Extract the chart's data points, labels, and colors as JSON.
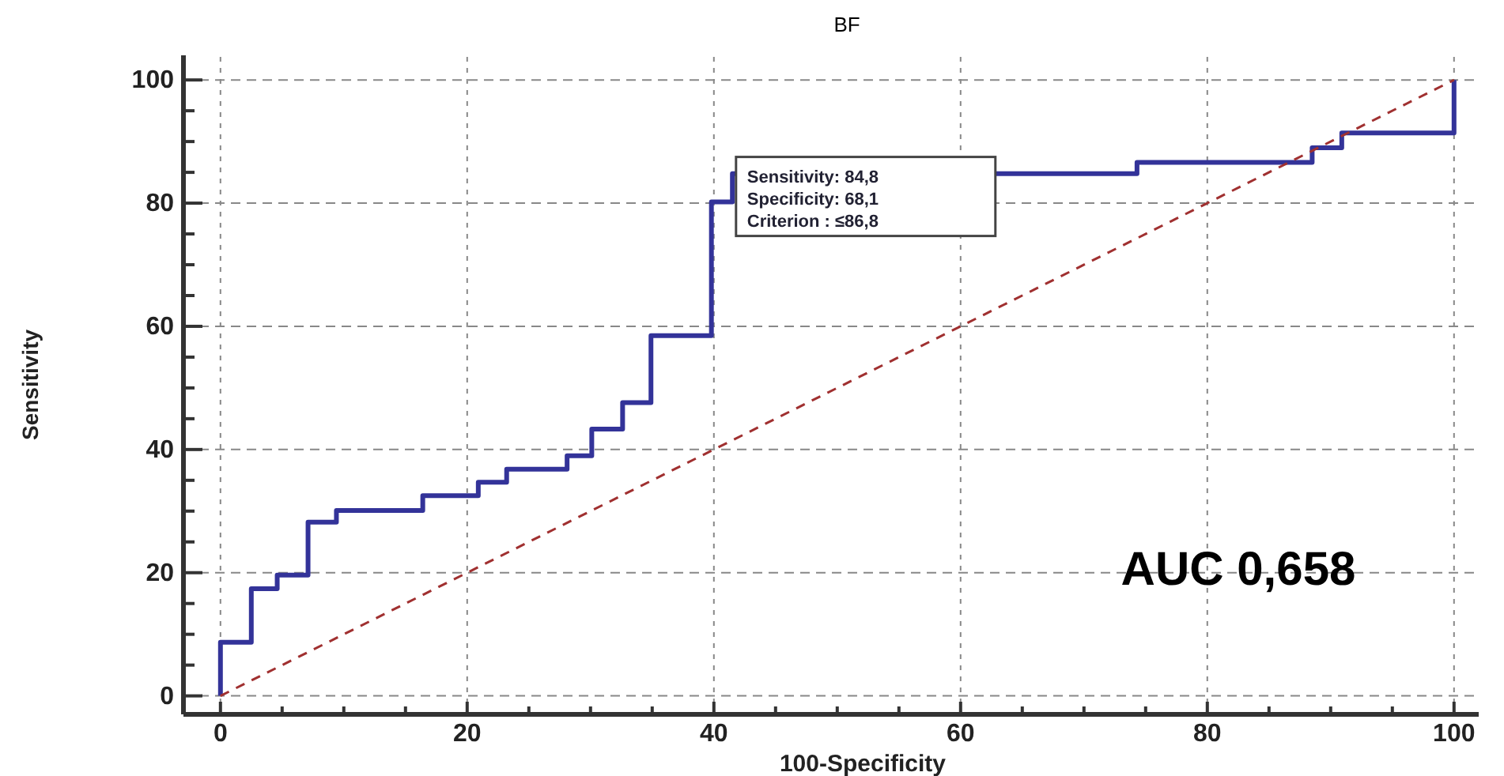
{
  "chart_data": {
    "type": "step",
    "title": "BF",
    "xlabel": "100-Specificity",
    "ylabel": "Sensitivity",
    "xlim": [
      -3,
      102
    ],
    "ylim": [
      -3,
      104
    ],
    "xticks": [
      0,
      {
        "value": 5,
        "label": null
      },
      {
        "value": 10,
        "label": null
      },
      {
        "value": 15,
        "label": null
      },
      20,
      {
        "value": 25,
        "label": null
      },
      {
        "value": 30,
        "label": null
      },
      {
        "value": 35,
        "label": null
      },
      40,
      {
        "value": 45,
        "label": null
      },
      {
        "value": 50,
        "label": null
      },
      {
        "value": 55,
        "label": null
      },
      60,
      {
        "value": 65,
        "label": null
      },
      {
        "value": 70,
        "label": null
      },
      {
        "value": 75,
        "label": null
      },
      80,
      {
        "value": 85,
        "label": null
      },
      {
        "value": 90,
        "label": null
      },
      {
        "value": 95,
        "label": null
      },
      100
    ],
    "yticks": [
      0,
      {
        "value": 5,
        "label": null
      },
      {
        "value": 10,
        "label": null
      },
      {
        "value": 15,
        "label": null
      },
      20,
      {
        "value": 25,
        "label": null
      },
      {
        "value": 30,
        "label": null
      },
      {
        "value": 35,
        "label": null
      },
      40,
      {
        "value": 45,
        "label": null
      },
      {
        "value": 50,
        "label": null
      },
      {
        "value": 55,
        "label": null
      },
      60,
      {
        "value": 65,
        "label": null
      },
      {
        "value": 70,
        "label": null
      },
      {
        "value": 75,
        "label": null
      },
      80,
      {
        "value": 85,
        "label": null
      },
      {
        "value": 90,
        "label": null
      },
      {
        "value": 95,
        "label": null
      },
      100
    ],
    "grid": true,
    "series": [
      {
        "color": "#333399",
        "line_style": "solid",
        "x": [
          0,
          0,
          2.5,
          4.6,
          7.1,
          9.4,
          16.4,
          20.9,
          23.2,
          28.1,
          30.1,
          32.6,
          34.9,
          39.8,
          41.5,
          74.3,
          88.5,
          90.9,
          100
        ],
        "values": [
          0,
          8.7,
          17.4,
          19.6,
          28.2,
          30.1,
          32.5,
          34.7,
          36.8,
          39.0,
          43.3,
          47.6,
          58.5,
          80.2,
          84.8,
          86.6,
          89.0,
          91.4,
          100
        ]
      },
      {
        "type": "line",
        "color": "#a03030",
        "line_style": "dashed",
        "x": [
          0,
          100
        ],
        "values": [
          0,
          100
        ]
      }
    ],
    "annotations": [
      "Sensitivity: 84,8",
      "Specificity: 68,1",
      "Criterion : ≤86,8",
      "AUC 0,658"
    ]
  }
}
